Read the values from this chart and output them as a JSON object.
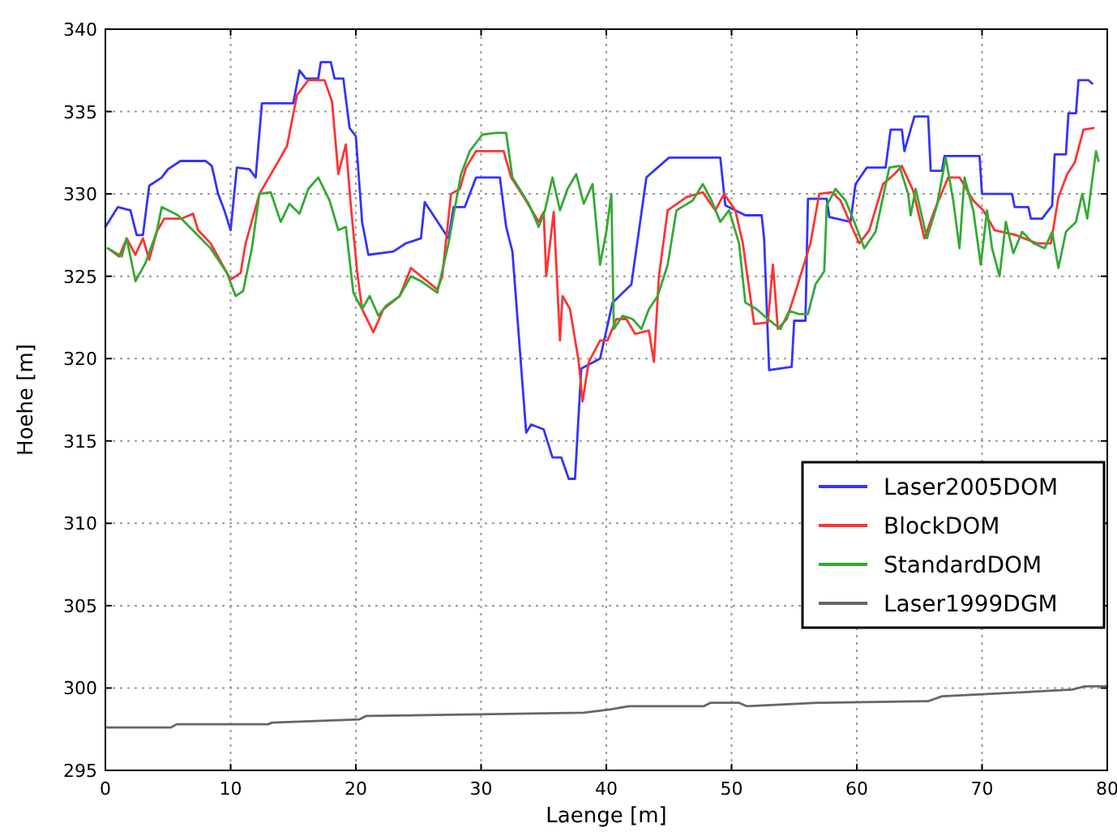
{
  "chart_data": {
    "type": "line",
    "xlabel": "Laenge [m]",
    "ylabel": "Hoehe [m]",
    "xlim": [
      0,
      80
    ],
    "ylim": [
      295,
      340
    ],
    "xticks": [
      0,
      10,
      20,
      30,
      40,
      50,
      60,
      70,
      80
    ],
    "yticks": [
      295,
      300,
      305,
      310,
      315,
      320,
      325,
      330,
      335,
      340
    ],
    "grid": true,
    "legend": "right",
    "line_style": "solid",
    "marker": "none",
    "series": [
      {
        "name": "Laser2005DOM",
        "color": "#3333ff",
        "x": [
          0,
          1,
          2,
          2.5,
          3,
          3.5,
          4.5,
          5,
          6,
          8,
          8.5,
          9,
          9.5,
          10,
          10.5,
          11.5,
          12,
          12.5,
          15,
          15.5,
          16,
          17,
          17.2,
          18,
          18.3,
          19,
          19.5,
          20,
          20.5,
          21,
          23,
          24,
          25.2,
          25.5,
          27.4,
          27.8,
          28.7,
          29.6,
          31.5,
          32,
          32.5,
          33.6,
          34,
          35,
          35.7,
          36.4,
          37,
          37.5,
          38,
          39.5,
          40.5,
          42,
          43.2,
          45,
          49.1,
          49.5,
          51.1,
          52.4,
          52.6,
          53,
          54.8,
          55,
          55.9,
          56.1,
          57.6,
          57.8,
          59.5,
          59.9,
          60.8,
          62.3,
          62.7,
          63.6,
          63.8,
          64.6,
          65.7,
          65.9,
          66.8,
          67,
          69.8,
          70,
          72.4,
          72.6,
          73.7,
          73.9,
          74.8,
          75.6,
          75.8,
          76.7,
          76.9,
          77.5,
          77.7,
          78.5,
          78.8
        ],
        "values": [
          328,
          329.2,
          329,
          327.5,
          327.5,
          330.5,
          331,
          331.5,
          332,
          332,
          331.7,
          330,
          329,
          327.8,
          331.6,
          331.5,
          331,
          335.5,
          335.5,
          337.5,
          337,
          337,
          338,
          338,
          337,
          337,
          334,
          333.5,
          328.3,
          326.3,
          326.5,
          327,
          327.3,
          329.5,
          327.3,
          329.2,
          329.2,
          331,
          331,
          328,
          326.5,
          315.5,
          316,
          315.7,
          314,
          314,
          312.7,
          312.7,
          319.4,
          320,
          323.4,
          324.5,
          331,
          332.2,
          332.2,
          329.3,
          328.7,
          328.7,
          327.3,
          319.3,
          319.5,
          322.3,
          322.3,
          329.7,
          329.7,
          328.6,
          328.3,
          330.6,
          331.6,
          331.6,
          333.9,
          333.9,
          332.6,
          334.7,
          334.7,
          331.4,
          331.4,
          332.3,
          332.3,
          330,
          330,
          329.2,
          329.2,
          328.5,
          328.5,
          329.3,
          332.4,
          332.4,
          334.9,
          334.9,
          336.9,
          336.9,
          336.7
        ]
      },
      {
        "name": "BlockDOM",
        "color": "#ff3333",
        "x": [
          0.2,
          1.1,
          1.7,
          2.4,
          3,
          3.5,
          4.1,
          4.7,
          6.1,
          7,
          7.4,
          8.4,
          10,
          10.8,
          11.2,
          12.3,
          13.6,
          14.5,
          15.3,
          16.2,
          17.5,
          18.1,
          18.6,
          19.2,
          19.6,
          20.1,
          20.5,
          21.4,
          22.2,
          23.5,
          24.4,
          25.2,
          26.5,
          26.9,
          27.6,
          28.3,
          28.8,
          29.6,
          31.8,
          32.4,
          33.5,
          34.6,
          35,
          35.2,
          35.8,
          36.3,
          36.5,
          37.1,
          37.8,
          38.1,
          38.6,
          39.5,
          40.1,
          40.8,
          41.6,
          42.3,
          43.4,
          43.8,
          44.2,
          44.9,
          46.4,
          47.7,
          48.7,
          49.4,
          50.3,
          50.9,
          51.8,
          52.9,
          53.3,
          53.7,
          54.4,
          55,
          56.3,
          57,
          58,
          58.7,
          59.6,
          60.2,
          61,
          62.1,
          63,
          63.6,
          64.5,
          65.4,
          66.2,
          67.3,
          68.2,
          69.3,
          70.1,
          71,
          72.7,
          74.4,
          75.5,
          76.1,
          76.8,
          77.4,
          78.1,
          78.9
        ],
        "values": [
          326.7,
          326.2,
          327.3,
          326.3,
          327.3,
          326,
          327.7,
          328.5,
          328.5,
          328.8,
          327.8,
          327,
          324.8,
          325.2,
          327,
          330,
          331.7,
          332.9,
          336,
          336.9,
          336.9,
          335.6,
          331.2,
          333,
          329.3,
          325.3,
          323,
          321.6,
          323,
          323.8,
          325.5,
          325,
          324.2,
          325,
          330,
          330.3,
          331.6,
          332.6,
          332.6,
          331,
          329.7,
          328.3,
          328.9,
          325,
          328.9,
          321.1,
          323.8,
          323,
          319.8,
          317.4,
          319.8,
          321.1,
          321.1,
          322.4,
          322.4,
          321.5,
          321.7,
          319.8,
          325,
          329,
          329.8,
          330.1,
          329,
          330,
          329,
          327,
          322.1,
          322.2,
          325.7,
          321.8,
          322.4,
          323.8,
          327,
          330,
          330.1,
          329.6,
          328,
          327,
          327.8,
          330.6,
          331.2,
          331.7,
          330.2,
          327.3,
          329,
          331,
          331,
          329.6,
          329,
          327.8,
          327.5,
          327,
          327,
          329.8,
          331.2,
          331.9,
          333.9,
          334
        ]
      },
      {
        "name": "StandardDOM",
        "color": "#33aa33",
        "x": [
          0.2,
          1.3,
          1.7,
          2.4,
          3.2,
          4.1,
          4.5,
          5.8,
          7.1,
          8.4,
          9.7,
          10.4,
          11,
          11.7,
          12.3,
          13.2,
          14,
          14.7,
          15.5,
          16.2,
          17,
          17.9,
          18.6,
          19.2,
          19.8,
          20.5,
          21.1,
          21.8,
          22.4,
          23.5,
          24.4,
          25.2,
          26.5,
          27.4,
          27.8,
          28.4,
          29.1,
          30.1,
          31.2,
          32,
          32.5,
          33.8,
          34.6,
          35.1,
          35.7,
          36.3,
          36.9,
          37.6,
          38.2,
          38.9,
          39.5,
          40,
          40.4,
          40.6,
          41.3,
          42.1,
          42.8,
          43.4,
          44.1,
          44.9,
          45.6,
          46.9,
          47.7,
          48.4,
          49.1,
          49.8,
          50.6,
          51.1,
          52,
          52.9,
          53.9,
          54.6,
          55.4,
          56.1,
          56.7,
          57.4,
          57.6,
          58.3,
          59.1,
          59.8,
          60.6,
          61.5,
          62.6,
          63.4,
          64.1,
          64.3,
          64.7,
          65.6,
          66.4,
          67.1,
          67.7,
          68.2,
          68.6,
          69.3,
          69.9,
          70.4,
          70.8,
          71.4,
          71.9,
          72.5,
          73.2,
          74.1,
          75,
          75.6,
          76.1,
          76.7,
          77.5,
          78,
          78.4,
          79.1,
          79.3
        ],
        "values": [
          326.7,
          326.2,
          327.3,
          324.7,
          325.8,
          327.7,
          329.2,
          328.7,
          327.7,
          326.7,
          325.2,
          323.8,
          324.1,
          326.7,
          330,
          330.1,
          328.3,
          329.4,
          328.8,
          330.3,
          331,
          329.6,
          327.8,
          328,
          324,
          323,
          323.8,
          322.6,
          323.2,
          323.8,
          325,
          324.7,
          324,
          327,
          328.7,
          331.2,
          332.6,
          333.6,
          333.7,
          333.7,
          331,
          329.4,
          328,
          329,
          331,
          329,
          330.3,
          331.2,
          329.4,
          330.6,
          325.7,
          327.7,
          330,
          321.8,
          322.6,
          322.4,
          321.8,
          323,
          323.8,
          325.7,
          329,
          329.6,
          330.6,
          329.6,
          328.3,
          329,
          327,
          323.4,
          323,
          322.4,
          321.8,
          322.9,
          322.7,
          322.7,
          324.5,
          325.3,
          329.3,
          330.3,
          329.6,
          328.3,
          326.7,
          327.7,
          331.6,
          331.7,
          330,
          328.7,
          330.3,
          327.3,
          329.3,
          332.2,
          329.6,
          326.7,
          331,
          329,
          325.7,
          329,
          326.7,
          325,
          328.3,
          326.4,
          327.7,
          327,
          326.7,
          327.7,
          325.5,
          327.7,
          328.3,
          330,
          328.5,
          332.6,
          332
        ]
      },
      {
        "name": "Laser1999DGM",
        "color": "#666666",
        "x": [
          0,
          5.2,
          5.7,
          13,
          13.3,
          20.3,
          20.8,
          29.9,
          38.2,
          40.3,
          41.8,
          47.8,
          48.3,
          50.6,
          51.2,
          56.9,
          65.7,
          66.8,
          77.2,
          78.2,
          80
        ],
        "values": [
          297.6,
          297.6,
          297.8,
          297.8,
          297.9,
          298.1,
          298.3,
          298.4,
          298.5,
          298.7,
          298.9,
          298.9,
          299.1,
          299.1,
          298.9,
          299.1,
          299.2,
          299.5,
          299.9,
          300.1,
          300.1
        ]
      }
    ]
  }
}
